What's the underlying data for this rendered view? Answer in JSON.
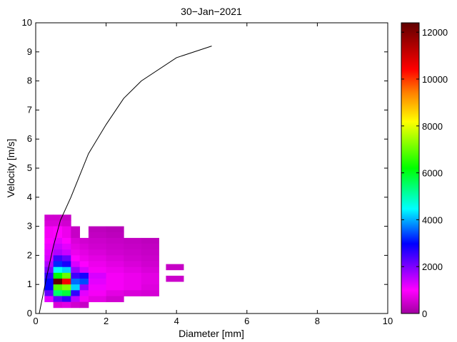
{
  "chart_data": {
    "type": "heatmap",
    "title": "30−Jan−2021",
    "xlabel": "Diameter [mm]",
    "ylabel": "Velocity [m/s]",
    "xlim": [
      0,
      10
    ],
    "ylim": [
      0,
      10
    ],
    "xticks": [
      "0",
      "2",
      "4",
      "6",
      "8",
      "10"
    ],
    "yticks": [
      "0",
      "1",
      "2",
      "3",
      "4",
      "5",
      "6",
      "7",
      "8",
      "9",
      "10"
    ],
    "colorbar": {
      "ticks": [
        "0",
        "2000",
        "4000",
        "6000",
        "8000",
        "10000",
        "12000"
      ],
      "range": [
        0,
        12400
      ]
    },
    "grid": false,
    "fall_velocity_curve": [
      [
        0.1,
        0.0
      ],
      [
        0.3,
        1.2
      ],
      [
        0.5,
        2.3
      ],
      [
        0.7,
        3.2
      ],
      [
        1.0,
        4.0
      ],
      [
        1.5,
        5.5
      ],
      [
        2.0,
        6.5
      ],
      [
        2.5,
        7.4
      ],
      [
        3.0,
        8.0
      ],
      [
        4.0,
        8.8
      ],
      [
        5.0,
        9.2
      ]
    ],
    "cells": [
      [
        0.375,
        3.3,
        0.25,
        0.2,
        500
      ],
      [
        0.625,
        3.3,
        0.25,
        0.2,
        500
      ],
      [
        0.875,
        3.3,
        0.25,
        0.2,
        400
      ],
      [
        0.375,
        3.1,
        0.25,
        0.2,
        600
      ],
      [
        0.625,
        3.1,
        0.25,
        0.2,
        600
      ],
      [
        0.875,
        3.1,
        0.25,
        0.2,
        500
      ],
      [
        0.375,
        2.9,
        0.25,
        0.2,
        900
      ],
      [
        0.625,
        2.9,
        0.25,
        0.2,
        1000
      ],
      [
        0.875,
        2.9,
        0.25,
        0.2,
        800
      ],
      [
        1.125,
        2.9,
        0.25,
        0.2,
        400
      ],
      [
        1.75,
        2.9,
        0.5,
        0.2,
        300
      ],
      [
        2.25,
        2.9,
        0.5,
        0.2,
        250
      ],
      [
        0.375,
        2.7,
        0.25,
        0.2,
        900
      ],
      [
        0.625,
        2.7,
        0.25,
        0.2,
        1000
      ],
      [
        0.875,
        2.7,
        0.25,
        0.2,
        800
      ],
      [
        1.125,
        2.7,
        0.25,
        0.2,
        400
      ],
      [
        1.75,
        2.7,
        0.5,
        0.2,
        350
      ],
      [
        2.25,
        2.7,
        0.5,
        0.2,
        300
      ],
      [
        0.375,
        2.5,
        0.25,
        0.2,
        1000
      ],
      [
        0.625,
        2.5,
        0.25,
        0.2,
        1200
      ],
      [
        0.875,
        2.5,
        0.25,
        0.2,
        1000
      ],
      [
        1.125,
        2.5,
        0.25,
        0.2,
        600
      ],
      [
        1.375,
        2.5,
        0.25,
        0.2,
        500
      ],
      [
        1.75,
        2.5,
        0.5,
        0.2,
        450
      ],
      [
        2.25,
        2.5,
        0.5,
        0.2,
        400
      ],
      [
        2.75,
        2.5,
        0.5,
        0.2,
        350
      ],
      [
        3.25,
        2.5,
        0.5,
        0.2,
        300
      ],
      [
        0.375,
        2.3,
        0.25,
        0.2,
        1100
      ],
      [
        0.625,
        2.3,
        0.25,
        0.2,
        1400
      ],
      [
        0.875,
        2.3,
        0.25,
        0.2,
        1200
      ],
      [
        1.125,
        2.3,
        0.25,
        0.2,
        700
      ],
      [
        1.375,
        2.3,
        0.25,
        0.2,
        600
      ],
      [
        1.75,
        2.3,
        0.5,
        0.2,
        500
      ],
      [
        2.25,
        2.3,
        0.5,
        0.2,
        450
      ],
      [
        2.75,
        2.3,
        0.5,
        0.2,
        400
      ],
      [
        3.25,
        2.3,
        0.5,
        0.2,
        350
      ],
      [
        0.375,
        2.1,
        0.25,
        0.2,
        1200
      ],
      [
        0.625,
        2.1,
        0.25,
        0.2,
        1600
      ],
      [
        0.875,
        2.1,
        0.25,
        0.2,
        1400
      ],
      [
        1.125,
        2.1,
        0.25,
        0.2,
        800
      ],
      [
        1.375,
        2.1,
        0.25,
        0.2,
        700
      ],
      [
        1.75,
        2.1,
        0.5,
        0.2,
        600
      ],
      [
        2.25,
        2.1,
        0.5,
        0.2,
        500
      ],
      [
        2.75,
        2.1,
        0.5,
        0.2,
        450
      ],
      [
        3.25,
        2.1,
        0.5,
        0.2,
        400
      ],
      [
        0.375,
        1.9,
        0.25,
        0.2,
        1300
      ],
      [
        0.625,
        1.9,
        0.25,
        0.2,
        2500
      ],
      [
        0.875,
        1.9,
        0.25,
        0.2,
        2200
      ],
      [
        1.125,
        1.9,
        0.25,
        0.2,
        1000
      ],
      [
        1.375,
        1.9,
        0.25,
        0.2,
        800
      ],
      [
        1.75,
        1.9,
        0.5,
        0.2,
        700
      ],
      [
        2.25,
        1.9,
        0.5,
        0.2,
        600
      ],
      [
        2.75,
        1.9,
        0.5,
        0.2,
        500
      ],
      [
        3.25,
        1.9,
        0.5,
        0.2,
        450
      ],
      [
        0.375,
        1.7,
        0.25,
        0.2,
        1600
      ],
      [
        0.625,
        1.7,
        0.25,
        0.2,
        3200
      ],
      [
        0.875,
        1.7,
        0.25,
        0.2,
        2800
      ],
      [
        1.125,
        1.7,
        0.25,
        0.2,
        1300
      ],
      [
        1.375,
        1.7,
        0.25,
        0.2,
        1000
      ],
      [
        1.75,
        1.7,
        0.5,
        0.2,
        800
      ],
      [
        2.25,
        1.7,
        0.5,
        0.2,
        700
      ],
      [
        2.75,
        1.7,
        0.5,
        0.2,
        600
      ],
      [
        3.25,
        1.7,
        0.5,
        0.2,
        500
      ],
      [
        3.95,
        1.6,
        0.5,
        0.2,
        400
      ],
      [
        0.375,
        1.5,
        0.25,
        0.2,
        2000
      ],
      [
        0.625,
        1.5,
        0.25,
        0.2,
        4500
      ],
      [
        0.875,
        1.5,
        0.25,
        0.2,
        4200
      ],
      [
        1.125,
        1.5,
        0.25,
        0.2,
        1800
      ],
      [
        1.375,
        1.5,
        0.25,
        0.2,
        1300
      ],
      [
        1.75,
        1.5,
        0.5,
        0.2,
        900
      ],
      [
        2.25,
        1.5,
        0.5,
        0.2,
        800
      ],
      [
        2.75,
        1.5,
        0.5,
        0.2,
        700
      ],
      [
        3.25,
        1.5,
        0.5,
        0.2,
        600
      ],
      [
        0.375,
        1.3,
        0.25,
        0.2,
        2600
      ],
      [
        0.625,
        1.3,
        0.25,
        0.2,
        6200
      ],
      [
        0.875,
        1.3,
        0.25,
        0.2,
        7000
      ],
      [
        1.125,
        1.3,
        0.25,
        0.2,
        2500
      ],
      [
        1.375,
        1.3,
        0.25,
        0.2,
        2800
      ],
      [
        1.75,
        1.3,
        0.5,
        0.2,
        1300
      ],
      [
        2.25,
        1.3,
        0.5,
        0.2,
        900
      ],
      [
        2.75,
        1.3,
        0.5,
        0.2,
        800
      ],
      [
        3.25,
        1.3,
        0.5,
        0.2,
        700
      ],
      [
        3.95,
        1.2,
        0.5,
        0.2,
        450
      ],
      [
        0.375,
        1.1,
        0.25,
        0.2,
        3000
      ],
      [
        0.625,
        1.1,
        0.25,
        0.2,
        12400
      ],
      [
        0.875,
        1.1,
        0.25,
        0.2,
        10500
      ],
      [
        1.125,
        1.1,
        0.25,
        0.2,
        3600
      ],
      [
        1.375,
        1.1,
        0.25,
        0.2,
        3400
      ],
      [
        1.75,
        1.1,
        0.5,
        0.2,
        1200
      ],
      [
        2.25,
        1.1,
        0.5,
        0.2,
        900
      ],
      [
        2.75,
        1.1,
        0.5,
        0.2,
        800
      ],
      [
        3.25,
        1.1,
        0.5,
        0.2,
        700
      ],
      [
        0.375,
        0.9,
        0.25,
        0.2,
        3000
      ],
      [
        0.625,
        0.9,
        0.25,
        0.2,
        6800
      ],
      [
        0.875,
        0.9,
        0.25,
        0.2,
        7200
      ],
      [
        1.125,
        0.9,
        0.25,
        0.2,
        4200
      ],
      [
        1.375,
        0.9,
        0.25,
        0.2,
        1800
      ],
      [
        1.75,
        0.9,
        0.5,
        0.2,
        1100
      ],
      [
        2.25,
        0.9,
        0.5,
        0.2,
        900
      ],
      [
        2.75,
        0.9,
        0.5,
        0.2,
        800
      ],
      [
        3.25,
        0.9,
        0.5,
        0.2,
        650
      ],
      [
        0.375,
        0.7,
        0.25,
        0.2,
        2200
      ],
      [
        0.625,
        0.7,
        0.25,
        0.2,
        5500
      ],
      [
        0.875,
        0.7,
        0.25,
        0.2,
        5800
      ],
      [
        1.125,
        0.7,
        0.25,
        0.2,
        2600
      ],
      [
        1.375,
        0.7,
        0.25,
        0.2,
        1200
      ],
      [
        1.75,
        0.7,
        0.5,
        0.2,
        900
      ],
      [
        2.25,
        0.7,
        0.5,
        0.2,
        700
      ],
      [
        2.75,
        0.7,
        0.5,
        0.2,
        600
      ],
      [
        3.25,
        0.7,
        0.5,
        0.2,
        550
      ],
      [
        0.375,
        0.5,
        0.25,
        0.2,
        1200
      ],
      [
        0.625,
        0.5,
        0.25,
        0.2,
        2200
      ],
      [
        0.875,
        0.5,
        0.25,
        0.2,
        2600
      ],
      [
        1.125,
        0.5,
        0.25,
        0.2,
        1500
      ],
      [
        1.375,
        0.5,
        0.25,
        0.2,
        900
      ],
      [
        1.75,
        0.5,
        0.5,
        0.2,
        700
      ],
      [
        2.25,
        0.5,
        0.5,
        0.2,
        500
      ],
      [
        0.625,
        0.3,
        0.25,
        0.2,
        600
      ],
      [
        0.875,
        0.3,
        0.25,
        0.2,
        700
      ],
      [
        1.125,
        0.3,
        0.25,
        0.2,
        500
      ],
      [
        1.375,
        0.3,
        0.25,
        0.2,
        400
      ]
    ]
  }
}
